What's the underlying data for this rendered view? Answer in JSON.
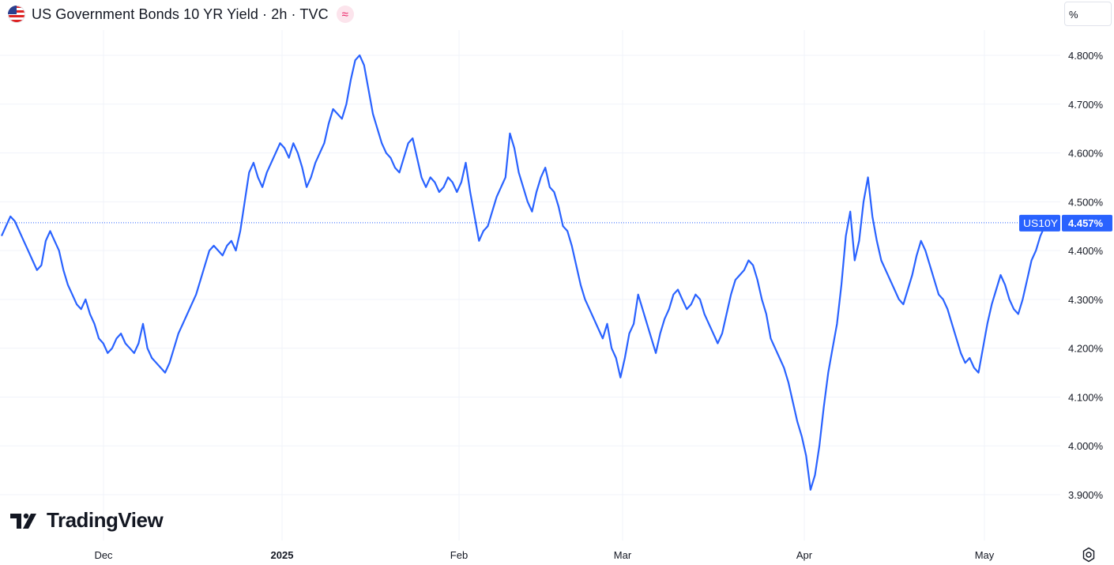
{
  "header": {
    "title": "US Government Bonds 10 YR Yield · 2h · TVC",
    "flag_icon": "us-flag-icon",
    "approx_icon": "≈"
  },
  "price_scale": {
    "unit_label": "%"
  },
  "logo": {
    "text": "TradingView"
  },
  "colors": {
    "line": "#2962ff",
    "axis_text": "#131722",
    "grid": "#f0f3fa",
    "badge": "#2962ff",
    "last_line": "#2962ff"
  },
  "chart_data": {
    "type": "line",
    "series": [
      {
        "name": "US10Y",
        "values": [
          4.43,
          4.45,
          4.47,
          4.46,
          4.44,
          4.42,
          4.4,
          4.38,
          4.36,
          4.37,
          4.42,
          4.44,
          4.42,
          4.4,
          4.36,
          4.33,
          4.31,
          4.29,
          4.28,
          4.3,
          4.27,
          4.25,
          4.22,
          4.21,
          4.19,
          4.2,
          4.22,
          4.23,
          4.21,
          4.2,
          4.19,
          4.21,
          4.25,
          4.2,
          4.18,
          4.17,
          4.16,
          4.15,
          4.17,
          4.2,
          4.23,
          4.25,
          4.27,
          4.29,
          4.31,
          4.34,
          4.37,
          4.4,
          4.41,
          4.4,
          4.39,
          4.41,
          4.42,
          4.4,
          4.44,
          4.5,
          4.56,
          4.58,
          4.55,
          4.53,
          4.56,
          4.58,
          4.6,
          4.62,
          4.61,
          4.59,
          4.62,
          4.6,
          4.57,
          4.53,
          4.55,
          4.58,
          4.6,
          4.62,
          4.66,
          4.69,
          4.68,
          4.67,
          4.7,
          4.75,
          4.79,
          4.8,
          4.78,
          4.73,
          4.68,
          4.65,
          4.62,
          4.6,
          4.59,
          4.57,
          4.56,
          4.59,
          4.62,
          4.63,
          4.59,
          4.55,
          4.53,
          4.55,
          4.54,
          4.52,
          4.53,
          4.55,
          4.54,
          4.52,
          4.54,
          4.58,
          4.52,
          4.47,
          4.42,
          4.44,
          4.45,
          4.48,
          4.51,
          4.53,
          4.55,
          4.64,
          4.61,
          4.56,
          4.53,
          4.5,
          4.48,
          4.52,
          4.55,
          4.57,
          4.53,
          4.52,
          4.49,
          4.45,
          4.44,
          4.41,
          4.37,
          4.33,
          4.3,
          4.28,
          4.26,
          4.24,
          4.22,
          4.25,
          4.2,
          4.18,
          4.14,
          4.18,
          4.23,
          4.25,
          4.31,
          4.28,
          4.25,
          4.22,
          4.19,
          4.23,
          4.26,
          4.28,
          4.31,
          4.32,
          4.3,
          4.28,
          4.29,
          4.31,
          4.3,
          4.27,
          4.25,
          4.23,
          4.21,
          4.23,
          4.27,
          4.31,
          4.34,
          4.35,
          4.36,
          4.38,
          4.37,
          4.34,
          4.3,
          4.27,
          4.22,
          4.2,
          4.18,
          4.16,
          4.13,
          4.09,
          4.05,
          4.02,
          3.98,
          3.91,
          3.94,
          4.0,
          4.08,
          4.15,
          4.2,
          4.25,
          4.33,
          4.43,
          4.48,
          4.38,
          4.42,
          4.5,
          4.55,
          4.47,
          4.42,
          4.38,
          4.36,
          4.34,
          4.32,
          4.3,
          4.29,
          4.32,
          4.35,
          4.39,
          4.42,
          4.4,
          4.37,
          4.34,
          4.31,
          4.3,
          4.28,
          4.25,
          4.22,
          4.19,
          4.17,
          4.18,
          4.16,
          4.15,
          4.2,
          4.25,
          4.29,
          4.32,
          4.35,
          4.33,
          4.3,
          4.28,
          4.27,
          4.3,
          4.34,
          4.38,
          4.4,
          4.43,
          4.45,
          4.46
        ]
      }
    ],
    "x_ticks": [
      "Dec",
      "2025",
      "Feb",
      "Mar",
      "Apr",
      "May"
    ],
    "y_ticks": [
      "4.800%",
      "4.700%",
      "4.600%",
      "4.500%",
      "4.400%",
      "4.300%",
      "4.200%",
      "4.100%",
      "4.000%",
      "3.900%"
    ],
    "ylim": [
      3.9,
      4.8
    ],
    "last": {
      "label": "US10Y",
      "value": "4.457%"
    },
    "grid": true
  }
}
